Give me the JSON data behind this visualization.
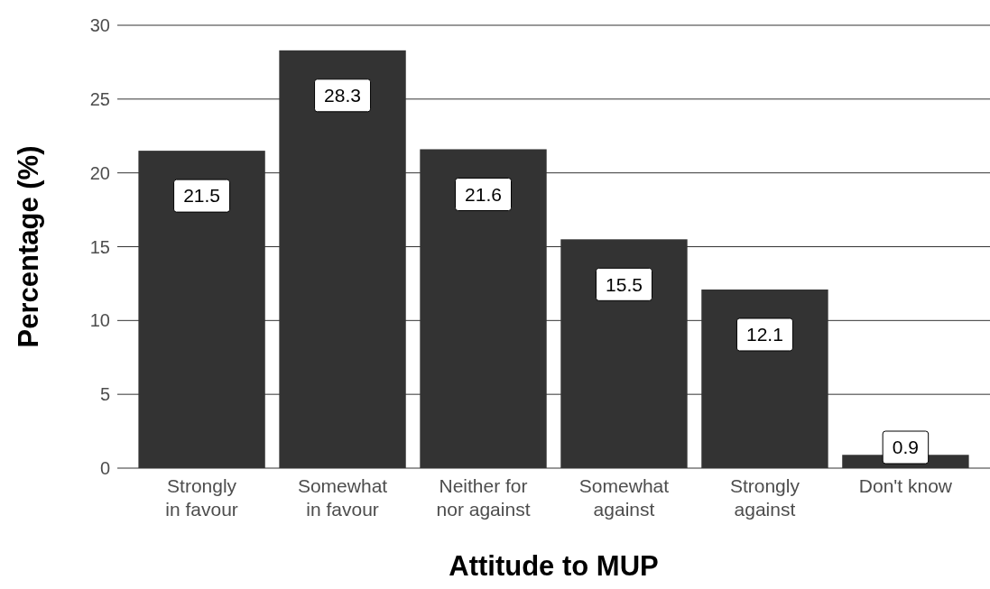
{
  "chart_data": {
    "type": "bar",
    "xlabel": "Attitude to MUP",
    "ylabel": "Percentage (%)",
    "categories": [
      "Strongly\nin favour",
      "Somewhat\nin favour",
      "Neither for\nnor against",
      "Somewhat\nagainst",
      "Strongly\nagainst",
      "Don't know"
    ],
    "values": [
      21.5,
      28.3,
      21.6,
      15.5,
      12.1,
      0.9
    ],
    "color": "#333333",
    "ylim": [
      0,
      30
    ],
    "yticks": [
      0,
      5,
      10,
      15,
      20,
      25,
      30
    ],
    "grid": "y",
    "data_labels": true
  }
}
